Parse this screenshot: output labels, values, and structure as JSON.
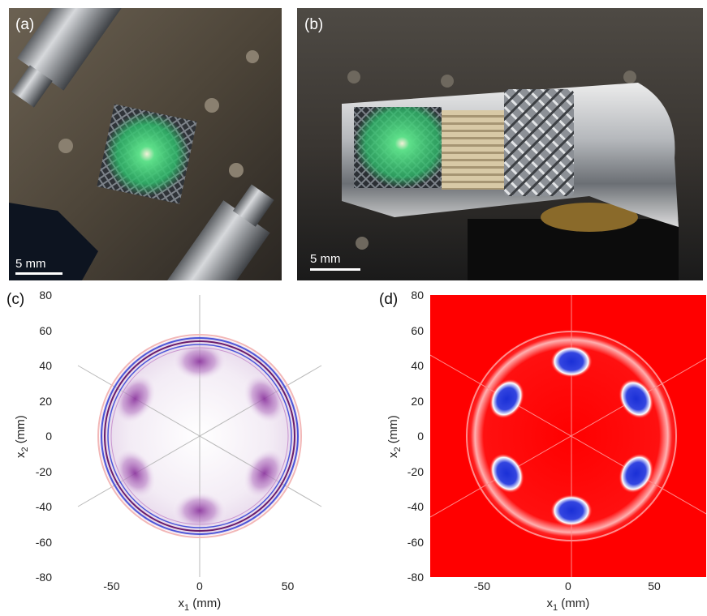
{
  "panels": {
    "a": {
      "label": "(a)",
      "scalebar": "5 mm"
    },
    "b": {
      "label": "(b)",
      "scalebar": "5 mm"
    },
    "c": {
      "label": "(c)"
    },
    "d": {
      "label": "(d)"
    }
  },
  "axes": {
    "xlabel_main": "x",
    "xlabel_sub": "1",
    "xlabel_unit": " (mm)",
    "ylabel_main": "x",
    "ylabel_sub": "2",
    "ylabel_unit": " (mm)",
    "x_ticks": [
      "-50",
      "0",
      "50"
    ],
    "y_ticks": [
      "80",
      "60",
      "40",
      "20",
      "0",
      "-20",
      "-40",
      "-60",
      "-80"
    ]
  },
  "colors": {
    "field_red": "#ff0000",
    "field_blue": "#1a2fd6",
    "magnitude_purple": "#7a2a8c"
  },
  "chart_data": [
    {
      "type": "heatmap",
      "panel": "(c)",
      "xlim": [
        -80,
        80
      ],
      "ylim": [
        -80,
        80
      ],
      "x_ticks": [
        -50,
        0,
        50
      ],
      "y_ticks": [
        80,
        60,
        40,
        20,
        0,
        -20,
        -40,
        -60,
        -80
      ],
      "xlabel": "x1 (mm)",
      "ylabel": "x2 (mm)",
      "grid": false
    },
    {
      "type": "heatmap",
      "panel": "(d)",
      "xlim": [
        -80,
        80
      ],
      "ylim": [
        -80,
        80
      ],
      "x_ticks": [
        -50,
        0,
        50
      ],
      "y_ticks": [
        80,
        60,
        40,
        20,
        0,
        -20,
        -40,
        -60,
        -80
      ],
      "xlabel": "x1 (mm)",
      "ylabel": "x2 (mm)",
      "grid": false
    }
  ]
}
